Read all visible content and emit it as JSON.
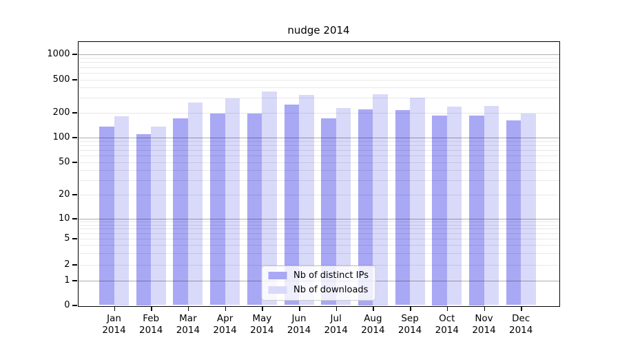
{
  "chart_data": {
    "type": "bar",
    "title": "nudge 2014",
    "categories": [
      "Jan",
      "Feb",
      "Mar",
      "Apr",
      "May",
      "Jun",
      "Jul",
      "Aug",
      "Sep",
      "Oct",
      "Nov",
      "Dec"
    ],
    "x_year_label": "2014",
    "series": [
      {
        "name": "Nb of distinct IPs",
        "color": "#a8a8f4",
        "values": [
          135,
          110,
          170,
          195,
          195,
          250,
          170,
          220,
          215,
          185,
          185,
          160
        ]
      },
      {
        "name": "Nb of downloads",
        "color": "#d9d9f9",
        "values": [
          180,
          135,
          265,
          295,
          355,
          325,
          225,
          335,
          300,
          235,
          240,
          195
        ]
      }
    ],
    "yticks": [
      0,
      1,
      2,
      5,
      10,
      20,
      50,
      100,
      200,
      500,
      1000
    ],
    "yscale": "symlog",
    "ylim": [
      0,
      1400
    ],
    "grid": true,
    "grid_note": "log major+minor gridlines drawn over bars",
    "legend_position": "lower center"
  },
  "colors": {
    "spine": "#000000",
    "grid_major": "rgba(0,0,0,0.32)",
    "grid_minor": "rgba(0,0,0,0.09)",
    "legend_border": "#cccccc",
    "legend_bg": "rgba(255,255,255,0.8)",
    "text": "#000000"
  }
}
